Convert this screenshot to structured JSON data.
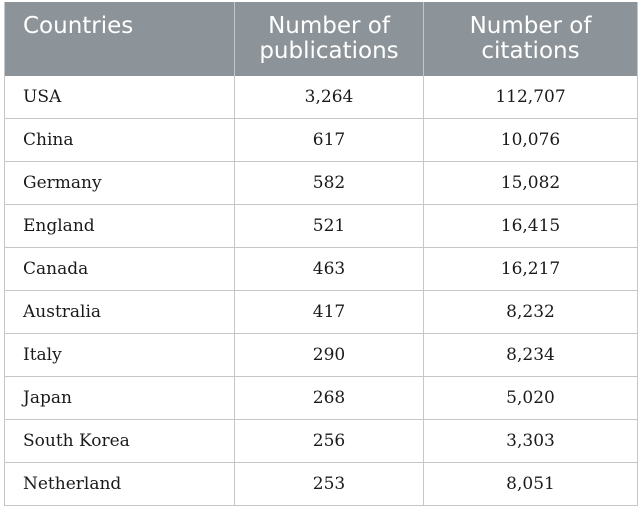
{
  "table": {
    "headers": [
      "Countries",
      "Number of publications",
      "Number of citations"
    ],
    "header_lines": [
      [
        "Countries"
      ],
      [
        "Number of",
        "publications"
      ],
      [
        "Number of",
        "citations"
      ]
    ],
    "rows": [
      {
        "country": "USA",
        "publications": "3,264",
        "citations": "112,707"
      },
      {
        "country": "China",
        "publications": "617",
        "citations": "10,076"
      },
      {
        "country": "Germany",
        "publications": "582",
        "citations": "15,082"
      },
      {
        "country": "England",
        "publications": "521",
        "citations": "16,415"
      },
      {
        "country": "Canada",
        "publications": "463",
        "citations": "16,217"
      },
      {
        "country": "Australia",
        "publications": "417",
        "citations": "8,232"
      },
      {
        "country": "Italy",
        "publications": "290",
        "citations": "8,234"
      },
      {
        "country": "Japan",
        "publications": "268",
        "citations": "5,020"
      },
      {
        "country": "South Korea",
        "publications": "256",
        "citations": "3,303"
      },
      {
        "country": "Netherland",
        "publications": "253",
        "citations": "8,051"
      }
    ],
    "colors": {
      "header_bg": "#8c949a",
      "header_text": "#ffffff",
      "grid": "#c6c6c6"
    }
  }
}
